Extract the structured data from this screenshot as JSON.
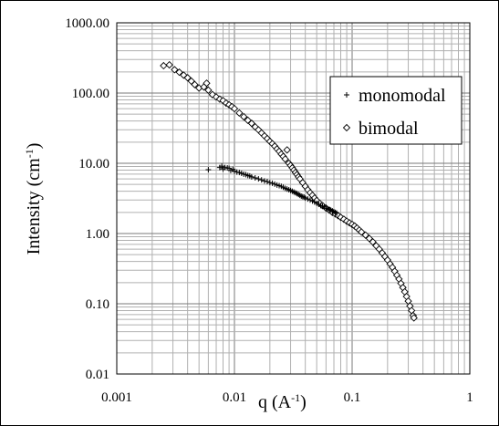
{
  "chart_data": {
    "type": "scatter",
    "xscale": "log",
    "yscale": "log",
    "xlim": [
      0.001,
      1
    ],
    "ylim": [
      0.01,
      1000
    ],
    "grid": true,
    "x_tick_labels": [
      "0.001",
      "0.01",
      "0.1",
      "1"
    ],
    "y_tick_labels": [
      "0.01",
      "0.10",
      "1.00",
      "10.00",
      "100.00",
      "1000.00"
    ],
    "xlabel": {
      "prefix": "q (A",
      "sup": "-1",
      "suffix": ")"
    },
    "ylabel": {
      "prefix": "Intensity (cm",
      "sup": "-1",
      "suffix": ")"
    },
    "legend_position": "top-right",
    "series": [
      {
        "name": "monomodal",
        "marker": "plus",
        "points": [
          [
            0.006,
            8.1
          ],
          [
            0.0075,
            8.7
          ],
          [
            0.0078,
            9.1
          ],
          [
            0.008,
            8.3
          ],
          [
            0.0083,
            8.7
          ],
          [
            0.0087,
            8.6
          ],
          [
            0.009,
            8.5
          ],
          [
            0.0093,
            7.9
          ],
          [
            0.0097,
            8.2
          ],
          [
            0.01,
            7.7
          ],
          [
            0.0105,
            7.5
          ],
          [
            0.011,
            7.4
          ],
          [
            0.0115,
            7.2
          ],
          [
            0.012,
            7.0
          ],
          [
            0.0125,
            6.9
          ],
          [
            0.013,
            6.7
          ],
          [
            0.0135,
            6.6
          ],
          [
            0.014,
            6.4
          ],
          [
            0.015,
            6.2
          ],
          [
            0.016,
            6.0
          ],
          [
            0.017,
            5.8
          ],
          [
            0.018,
            5.6
          ],
          [
            0.019,
            5.5
          ],
          [
            0.02,
            5.3
          ],
          [
            0.021,
            5.2
          ],
          [
            0.022,
            5.05
          ],
          [
            0.023,
            4.9
          ],
          [
            0.024,
            4.8
          ],
          [
            0.025,
            4.7
          ],
          [
            0.026,
            4.55
          ],
          [
            0.027,
            4.4
          ],
          [
            0.028,
            4.3
          ],
          [
            0.029,
            4.2
          ],
          [
            0.03,
            4.1
          ],
          [
            0.031,
            4.0
          ],
          [
            0.032,
            3.9
          ],
          [
            0.033,
            3.8
          ],
          [
            0.034,
            3.7
          ],
          [
            0.035,
            3.6
          ],
          [
            0.036,
            3.5
          ],
          [
            0.037,
            3.4
          ],
          [
            0.038,
            3.35
          ],
          [
            0.039,
            3.3
          ],
          [
            0.04,
            3.2
          ],
          [
            0.042,
            3.1
          ],
          [
            0.044,
            3.0
          ],
          [
            0.046,
            2.9
          ],
          [
            0.048,
            2.8
          ],
          [
            0.05,
            2.7
          ],
          [
            0.052,
            2.6
          ],
          [
            0.054,
            2.5
          ],
          [
            0.056,
            2.45
          ],
          [
            0.058,
            2.4
          ],
          [
            0.06,
            2.3
          ],
          [
            0.062,
            2.25
          ],
          [
            0.064,
            2.2
          ],
          [
            0.066,
            2.15
          ],
          [
            0.068,
            2.1
          ],
          [
            0.07,
            2.05
          ],
          [
            0.072,
            2.0
          ],
          [
            0.074,
            1.95
          ]
        ]
      },
      {
        "name": "bimodal",
        "marker": "diamond",
        "points": [
          [
            0.0025,
            245
          ],
          [
            0.0028,
            252
          ],
          [
            0.0031,
            215
          ],
          [
            0.0034,
            198
          ],
          [
            0.0037,
            180
          ],
          [
            0.004,
            165
          ],
          [
            0.0043,
            148
          ],
          [
            0.0046,
            132
          ],
          [
            0.005,
            118
          ],
          [
            0.0055,
            122
          ],
          [
            0.0058,
            138
          ],
          [
            0.006,
            110
          ],
          [
            0.0065,
            95
          ],
          [
            0.007,
            88
          ],
          [
            0.0075,
            82
          ],
          [
            0.008,
            78
          ],
          [
            0.0085,
            72
          ],
          [
            0.009,
            68
          ],
          [
            0.0095,
            64
          ],
          [
            0.01,
            60
          ],
          [
            0.011,
            52
          ],
          [
            0.012,
            46
          ],
          [
            0.013,
            41
          ],
          [
            0.014,
            37
          ],
          [
            0.015,
            33
          ],
          [
            0.016,
            30
          ],
          [
            0.017,
            27
          ],
          [
            0.018,
            24.5
          ],
          [
            0.019,
            22.5
          ],
          [
            0.02,
            20.5
          ],
          [
            0.021,
            19
          ],
          [
            0.022,
            17.5
          ],
          [
            0.023,
            16
          ],
          [
            0.024,
            14.8
          ],
          [
            0.025,
            13.5
          ],
          [
            0.026,
            12.5
          ],
          [
            0.027,
            11.5
          ],
          [
            0.028,
            15.5
          ],
          [
            0.029,
            10
          ],
          [
            0.03,
            9.3
          ],
          [
            0.031,
            8.6
          ],
          [
            0.032,
            8.0
          ],
          [
            0.033,
            7.4
          ],
          [
            0.034,
            6.9
          ],
          [
            0.035,
            6.4
          ],
          [
            0.036,
            6.0
          ],
          [
            0.038,
            5.3
          ],
          [
            0.04,
            4.7
          ],
          [
            0.042,
            4.2
          ],
          [
            0.044,
            3.8
          ],
          [
            0.046,
            3.5
          ],
          [
            0.048,
            3.2
          ],
          [
            0.05,
            2.95
          ],
          [
            0.053,
            2.7
          ],
          [
            0.056,
            2.5
          ],
          [
            0.06,
            2.3
          ],
          [
            0.064,
            2.15
          ],
          [
            0.068,
            2.0
          ],
          [
            0.072,
            1.9
          ],
          [
            0.076,
            1.8
          ],
          [
            0.08,
            1.7
          ],
          [
            0.085,
            1.6
          ],
          [
            0.09,
            1.5
          ],
          [
            0.095,
            1.42
          ],
          [
            0.1,
            1.35
          ],
          [
            0.105,
            1.28
          ],
          [
            0.11,
            1.2
          ],
          [
            0.115,
            1.12
          ],
          [
            0.12,
            1.05
          ],
          [
            0.13,
            0.95
          ],
          [
            0.14,
            0.85
          ],
          [
            0.15,
            0.76
          ],
          [
            0.16,
            0.67
          ],
          [
            0.17,
            0.6
          ],
          [
            0.18,
            0.53
          ],
          [
            0.19,
            0.47
          ],
          [
            0.2,
            0.42
          ],
          [
            0.21,
            0.37
          ],
          [
            0.22,
            0.33
          ],
          [
            0.23,
            0.29
          ],
          [
            0.24,
            0.255
          ],
          [
            0.25,
            0.225
          ],
          [
            0.26,
            0.195
          ],
          [
            0.27,
            0.17
          ],
          [
            0.28,
            0.148
          ],
          [
            0.29,
            0.127
          ],
          [
            0.3,
            0.109
          ],
          [
            0.31,
            0.093
          ],
          [
            0.32,
            0.08
          ],
          [
            0.33,
            0.068
          ],
          [
            0.335,
            0.063
          ]
        ]
      }
    ]
  }
}
